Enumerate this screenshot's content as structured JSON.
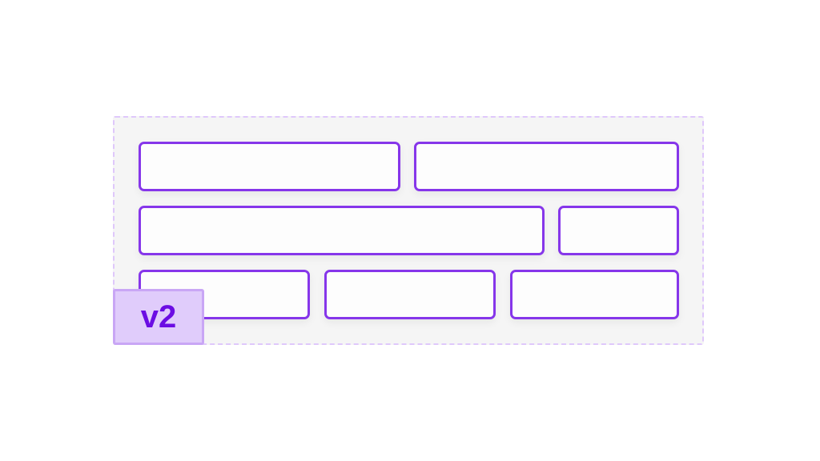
{
  "colors": {
    "box_border": "#8636ea",
    "container_border": "#dfc8fb",
    "badge_fill": "#e0ccfb",
    "badge_text": "#6b0de3"
  },
  "rows": [
    {
      "boxes": 2
    },
    {
      "boxes": 2
    },
    {
      "boxes": 3
    }
  ],
  "badge": {
    "label": "v2"
  }
}
